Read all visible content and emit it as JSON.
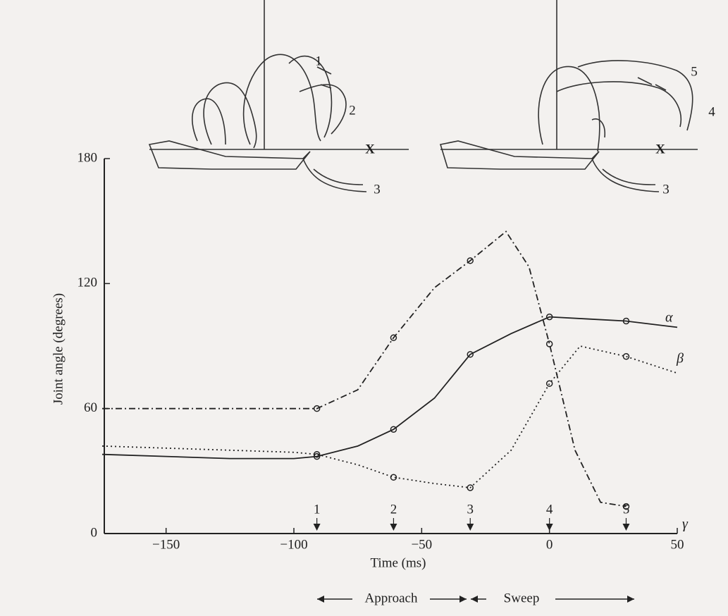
{
  "chart_data": {
    "type": "line",
    "xlabel": "Time (ms)",
    "ylabel": "Joint angle (degrees)",
    "xlim": [
      -175,
      50
    ],
    "ylim": [
      0,
      180
    ],
    "xticks": [
      {
        "value": -150,
        "label": "−150"
      },
      {
        "value": -100,
        "label": "−100"
      },
      {
        "value": -50,
        "label": "−50"
      },
      0,
      50
    ],
    "yticks": [
      0,
      60,
      120,
      180
    ],
    "series": [
      {
        "name": "α",
        "color": "#222222",
        "dash": "solid",
        "x": [
          -175,
          -150,
          -125,
          -100,
          -91,
          -75,
          -61,
          -45,
          -31,
          -15,
          0,
          15,
          30,
          50
        ],
        "values": [
          38,
          37,
          36,
          36,
          37,
          42,
          50,
          65,
          86,
          96,
          104,
          103,
          102,
          99
        ]
      },
      {
        "name": "β",
        "color": "#222222",
        "dash": "dotted",
        "x": [
          -175,
          -150,
          -125,
          -100,
          -91,
          -75,
          -61,
          -45,
          -31,
          -15,
          0,
          12,
          30,
          50
        ],
        "values": [
          42,
          41,
          40,
          39,
          38,
          33,
          27,
          24,
          22,
          40,
          72,
          90,
          85,
          77
        ]
      },
      {
        "name": "γ",
        "color": "#222222",
        "dash": "dash-dot",
        "x": [
          -175,
          -150,
          -125,
          -100,
          -91,
          -75,
          -61,
          -45,
          -31,
          -17,
          -8,
          0,
          10,
          20,
          30
        ],
        "values": [
          60,
          60,
          60,
          60,
          60,
          69,
          94,
          118,
          131,
          145,
          128,
          91,
          40,
          15,
          13
        ]
      }
    ],
    "events": {
      "x": [
        -91,
        -61,
        -31,
        0,
        30
      ],
      "labels": [
        "1",
        "2",
        "3",
        "4",
        "5"
      ]
    },
    "phases": [
      "Approach",
      "Sweep"
    ],
    "insets": [
      {
        "labels": [
          "1",
          "2",
          "3"
        ],
        "target": "X"
      },
      {
        "labels": [
          "5",
          "4",
          "3"
        ],
        "target": "X"
      }
    ]
  }
}
